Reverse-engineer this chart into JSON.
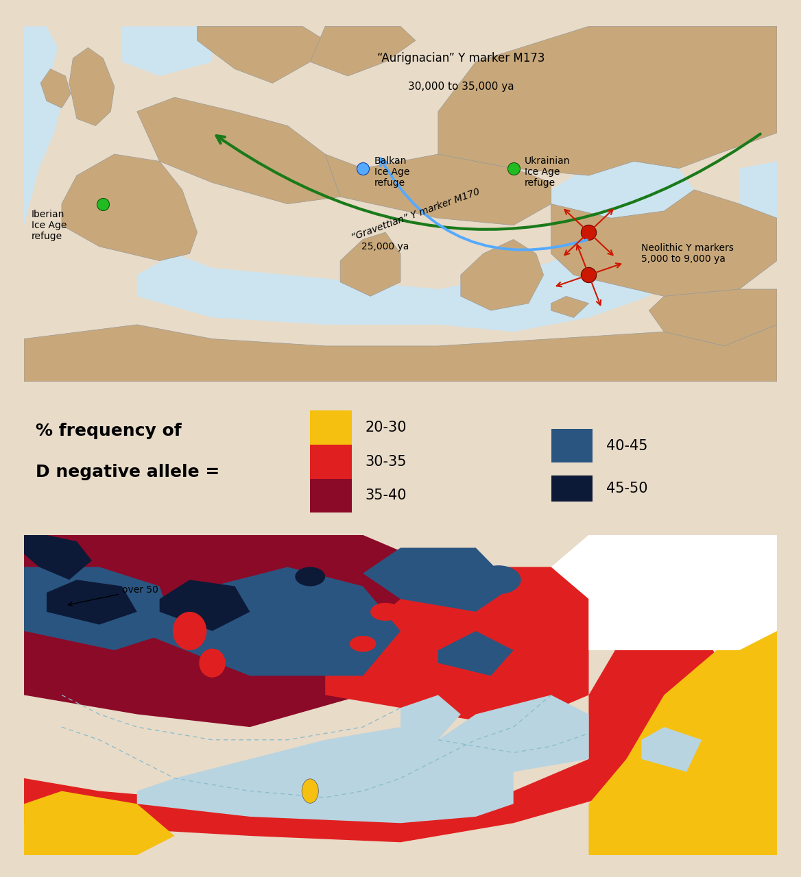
{
  "bg_color": "#e8dbc8",
  "map1_bg": "#c8a87a",
  "map1_water": "#cce4f0",
  "map2_water": "#b8d4e0",
  "legend_title_line1": "% frequency of",
  "legend_title_line2": "D negative allele =",
  "col_yellow": "#f5c010",
  "col_red": "#e02020",
  "col_darkred": "#8b0a28",
  "col_blue": "#2a5580",
  "col_darknavy": "#0c1a38",
  "green_dot_color": "#22bb22",
  "blue_dot_color": "#55aaff",
  "red_dot_color": "#cc1800",
  "green_arrow_color": "#1a7a1a",
  "blue_arrow_color": "#55aaff",
  "red_arrow_color": "#cc1800",
  "text_aurignacian": "“Aurignacian” Y marker M173",
  "text_30000": "30,000 to 35,000 ya",
  "text_gravettian": "“Gravettian” Y marker M170",
  "text_25000": "25,000 ya",
  "text_neolithic": "Neolithic Y markers\n5,000 to 9,000 ya",
  "text_iberian": "Iberian\nIce Age\nrefuge",
  "text_balkan": "Balkan\nIce Age\nrefuge",
  "text_ukrainian": "Ukrainian\nIce Age\nrefuge",
  "text_over50": "over 50",
  "legend_items_left": [
    {
      "label": "20-30",
      "color": "#f5c010"
    },
    {
      "label": "30-35",
      "color": "#e02020"
    },
    {
      "label": "35-40",
      "color": "#8b0a28"
    }
  ],
  "legend_items_right": [
    {
      "label": "40-45",
      "color": "#2a5580"
    },
    {
      "label": "45-50",
      "color": "#0c1a38"
    }
  ]
}
